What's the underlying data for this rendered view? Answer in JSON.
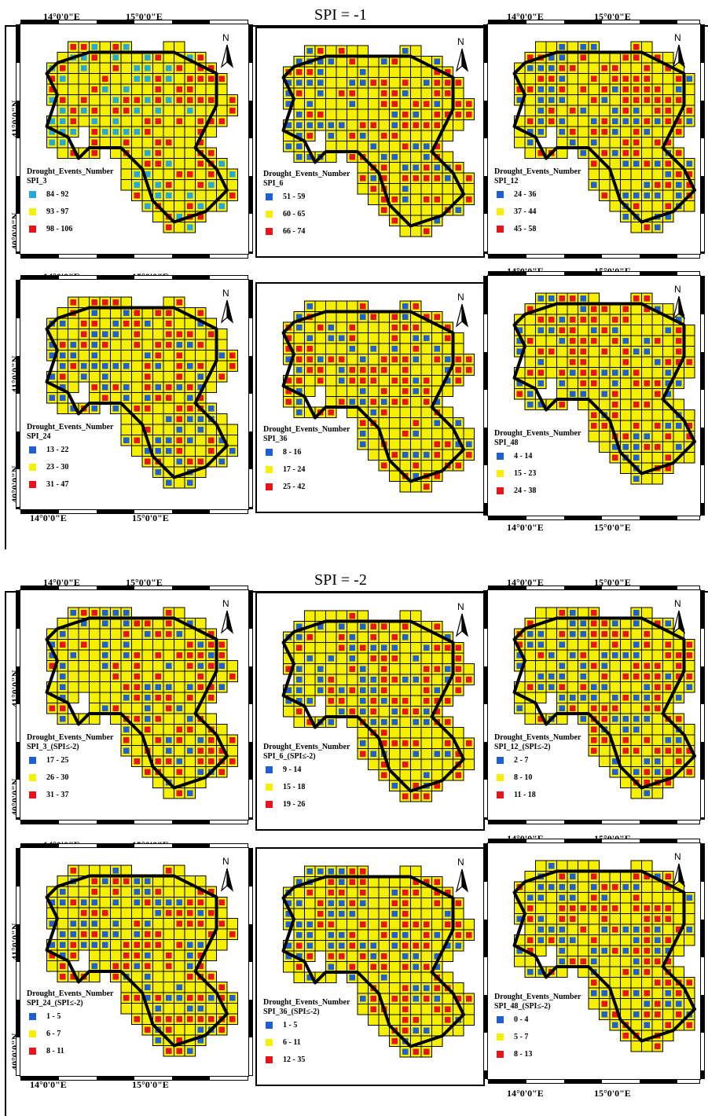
{
  "colors": {
    "blue": "#1f5fd1",
    "cyan": "#29a8d8",
    "yellow": "#f4f000",
    "red": "#e8141b"
  },
  "sections": [
    {
      "title": "SPI = -1",
      "coord_labels": {
        "lon1": "14°0'0\"E",
        "lon2": "15°0'0\"E",
        "lat1": "41°0'0\"N",
        "lat2": "40°0'0\"N"
      },
      "panels": [
        {
          "legend_title": "Drought_Events_Number",
          "series": "SPI_3",
          "classes": [
            {
              "range": "84 - 92",
              "color": "#29a8d8"
            },
            {
              "range": "93 - 97",
              "color": "#f4f000"
            },
            {
              "range": "98 - 106",
              "color": "#e8141b"
            }
          ],
          "north": "N"
        },
        {
          "legend_title": "Drought_Events_Number",
          "series": "SPI_6",
          "classes": [
            {
              "range": "51 - 59",
              "color": "#1f5fd1"
            },
            {
              "range": "60 - 65",
              "color": "#f4f000"
            },
            {
              "range": "66 - 74",
              "color": "#e8141b"
            }
          ],
          "north": "N"
        },
        {
          "legend_title": "Drought_Events_Number",
          "series": "SPI_12",
          "classes": [
            {
              "range": "24 - 36",
              "color": "#1f5fd1"
            },
            {
              "range": "37 - 44",
              "color": "#f4f000"
            },
            {
              "range": "45 - 58",
              "color": "#e8141b"
            }
          ],
          "north": "N"
        },
        {
          "legend_title": "Drought_Events_Number",
          "series": "SPI_24",
          "classes": [
            {
              "range": "13 - 22",
              "color": "#1f5fd1"
            },
            {
              "range": "23 - 30",
              "color": "#f4f000"
            },
            {
              "range": "31 - 47",
              "color": "#e8141b"
            }
          ],
          "north": "N"
        },
        {
          "legend_title": "Drought_Events_Number",
          "series": "SPI_36",
          "classes": [
            {
              "range": "8 - 16",
              "color": "#1f5fd1"
            },
            {
              "range": "17 - 24",
              "color": "#f4f000"
            },
            {
              "range": "25 - 42",
              "color": "#e8141b"
            }
          ],
          "north": "N"
        },
        {
          "legend_title": "Drought_Events_Number",
          "series": "SPI_48",
          "classes": [
            {
              "range": "4 - 14",
              "color": "#1f5fd1"
            },
            {
              "range": "15 - 23",
              "color": "#f4f000"
            },
            {
              "range": "24 - 38",
              "color": "#e8141b"
            }
          ],
          "north": "N"
        }
      ]
    },
    {
      "title": "SPI = -2",
      "coord_labels": {
        "lon1": "14°0'0\"E",
        "lon2": "15°0'0\"E",
        "lat1": "41°0'0\"N",
        "lat2": "40°0'0\"N"
      },
      "panels": [
        {
          "legend_title": "Drought_Events_Number",
          "series": "SPI_3_(SPI≤-2)",
          "classes": [
            {
              "range": "17 - 25",
              "color": "#1f5fd1"
            },
            {
              "range": "26 - 30",
              "color": "#f4f000"
            },
            {
              "range": "31 - 37",
              "color": "#e8141b"
            }
          ],
          "north": "N"
        },
        {
          "legend_title": "Drought_Events_Number",
          "series": "SPI_6_(SPI≤-2)",
          "classes": [
            {
              "range": "9 - 14",
              "color": "#1f5fd1"
            },
            {
              "range": "15 - 18",
              "color": "#f4f000"
            },
            {
              "range": "19 - 26",
              "color": "#e8141b"
            }
          ],
          "north": "N"
        },
        {
          "legend_title": "Drought_Events_Number",
          "series": "SPI_12_(SPI≤-2)",
          "classes": [
            {
              "range": "2 - 7",
              "color": "#1f5fd1"
            },
            {
              "range": "8 - 10",
              "color": "#f4f000"
            },
            {
              "range": "11 - 18",
              "color": "#e8141b"
            }
          ],
          "north": "N"
        },
        {
          "legend_title": "Drought_Events_Number",
          "series": "SPI_24_(SPI≤-2)",
          "classes": [
            {
              "range": "1 - 5",
              "color": "#1f5fd1"
            },
            {
              "range": "6 - 7",
              "color": "#f4f000"
            },
            {
              "range": "8 - 11",
              "color": "#e8141b"
            }
          ],
          "north": "N"
        },
        {
          "legend_title": "Drought_Events_Number",
          "series": "SPI_36_(SPI≤-2)",
          "classes": [
            {
              "range": "1 - 5",
              "color": "#1f5fd1"
            },
            {
              "range": "6 - 11",
              "color": "#f4f000"
            },
            {
              "range": "12 - 35",
              "color": "#e8141b"
            }
          ],
          "north": "N"
        },
        {
          "legend_title": "Drought_Events_Number",
          "series": "SPI_48_(SPI≤-2)",
          "classes": [
            {
              "range": "0 - 4",
              "color": "#1f5fd1"
            },
            {
              "range": "5 - 7",
              "color": "#f4f000"
            },
            {
              "range": "8 - 13",
              "color": "#e8141b"
            }
          ],
          "north": "N"
        }
      ]
    }
  ]
}
